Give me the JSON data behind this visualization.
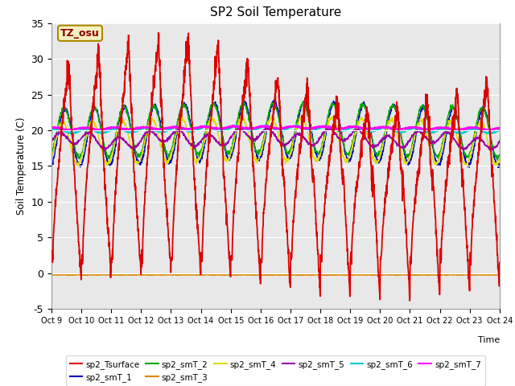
{
  "title": "SP2 Soil Temperature",
  "ylabel": "Soil Temperature (C)",
  "xlabel": "Time",
  "ylim": [
    -5,
    35
  ],
  "yticks": [
    -5,
    0,
    5,
    10,
    15,
    20,
    25,
    30,
    35
  ],
  "x_tick_labels": [
    "Oct 9",
    "Oct 10",
    "Oct 11",
    "Oct 12",
    "Oct 13",
    "Oct 14",
    "Oct 15",
    "Oct 16",
    "Oct 17",
    "Oct 18",
    "Oct 19",
    "Oct 20",
    "Oct 21",
    "Oct 22",
    "Oct 23",
    "Oct 24"
  ],
  "annotation_text": "TZ_osu",
  "annotation_box_color": "#f5f0c0",
  "annotation_border_color": "#aa8800",
  "bg_color": "#e8e8e8",
  "series_colors": {
    "sp2_Tsurface": "#dd0000",
    "sp2_smT_1": "#0000cc",
    "sp2_smT_2": "#00aa00",
    "sp2_smT_3": "#dd8800",
    "sp2_smT_4": "#dddd00",
    "sp2_smT_5": "#9900aa",
    "sp2_smT_6": "#00cccc",
    "sp2_smT_7": "#ff00ff"
  },
  "legend_order": [
    "sp2_Tsurface",
    "sp2_smT_1",
    "sp2_smT_2",
    "sp2_smT_3",
    "sp2_smT_4",
    "sp2_smT_5",
    "sp2_smT_6",
    "sp2_smT_7"
  ]
}
